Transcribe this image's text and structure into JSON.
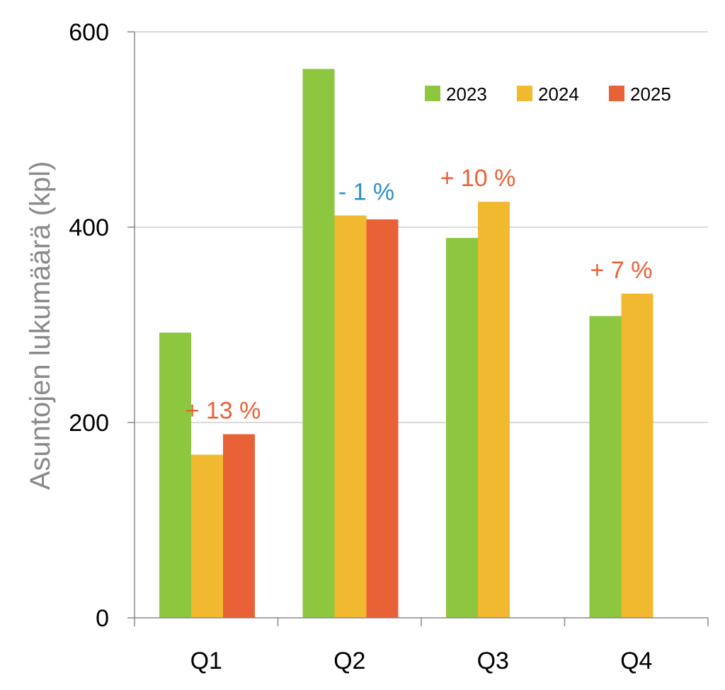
{
  "chart_data": {
    "type": "bar",
    "ylabel": "Asuntojen lukumäärä (kpl)",
    "xlabel": "",
    "ylim": [
      0,
      600
    ],
    "yticks": [
      "0",
      "200",
      "400",
      "600"
    ],
    "categories": [
      "Q1",
      "Q2",
      "Q3",
      "Q4"
    ],
    "series": [
      {
        "name": "2023",
        "color": "#8dc63f",
        "values": [
          292,
          562,
          389,
          309
        ]
      },
      {
        "name": "2024",
        "color": "#f0b930",
        "values": [
          167,
          412,
          426,
          332
        ]
      },
      {
        "name": "2025",
        "color": "#e96136",
        "values": [
          188,
          408,
          null,
          null
        ]
      }
    ],
    "annotations": [
      {
        "category": "Q1",
        "text": "+ 13 %",
        "color": "#e96136"
      },
      {
        "category": "Q2",
        "text": "- 1 %",
        "color": "#2b8fc9"
      },
      {
        "category": "Q3",
        "text": "+ 10 %",
        "color": "#e96136"
      },
      {
        "category": "Q4",
        "text": "+ 7 %",
        "color": "#e96136"
      }
    ],
    "grid": true,
    "legend_position": "top-right"
  }
}
